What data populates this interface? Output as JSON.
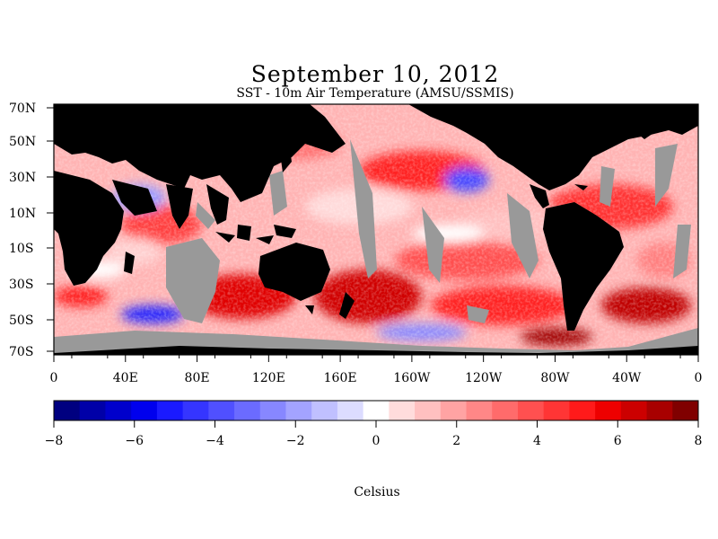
{
  "title": "September 10, 2012",
  "subtitle": "SST - 10m Air Temperature (AMSU/SSMIS)",
  "map": {
    "lat_labels": [
      "70N",
      "50N",
      "30N",
      "10N",
      "10S",
      "30S",
      "50S",
      "70S"
    ],
    "lon_labels": [
      "0",
      "40E",
      "80E",
      "120E",
      "160E",
      "160W",
      "120W",
      "80W",
      "40W",
      "0"
    ],
    "land_color": "#000000",
    "nodata_color": "#999999"
  },
  "colorbar": {
    "unit_label": "Celsius",
    "tick_labels": [
      "-8",
      "-6",
      "-4",
      "-2",
      "0",
      "2",
      "4",
      "6",
      "8"
    ],
    "min": -8,
    "max": 8,
    "colors": [
      "#000080",
      "#0000a8",
      "#0000cc",
      "#0000ee",
      "#1a1aff",
      "#3535ff",
      "#5050ff",
      "#6b6bff",
      "#8787ff",
      "#a3a3ff",
      "#c0c0ff",
      "#dcdcff",
      "#ffffff",
      "#ffdcdc",
      "#ffc0c0",
      "#ffa3a3",
      "#ff8787",
      "#ff6b6b",
      "#ff5050",
      "#ff3535",
      "#ff1a1a",
      "#ee0000",
      "#cc0000",
      "#a80000",
      "#800000"
    ]
  }
}
